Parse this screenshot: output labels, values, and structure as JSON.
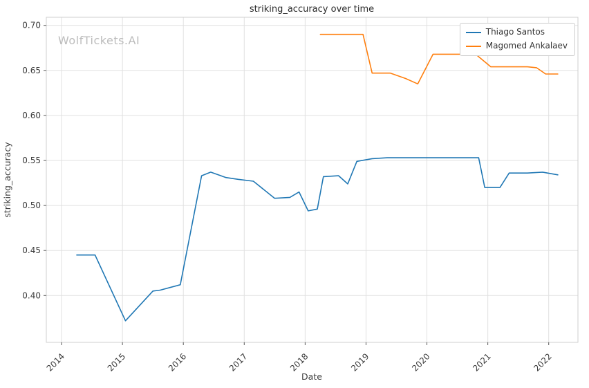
{
  "chart_data": {
    "type": "line",
    "title": "striking_accuracy over time",
    "xlabel": "Date",
    "ylabel": "striking_accuracy",
    "watermark": "WolfTickets.AI",
    "grid": true,
    "legend_position": "upper right",
    "xlim": [
      2013.75,
      2022.48
    ],
    "ylim": [
      0.348,
      0.709
    ],
    "xticks": [
      2014,
      2015,
      2016,
      2017,
      2018,
      2019,
      2020,
      2021,
      2022
    ],
    "yticks": [
      0.4,
      0.45,
      0.5,
      0.55,
      0.6,
      0.65,
      0.7
    ],
    "series": [
      {
        "name": "Thiago Santos",
        "color": "#1f77b4",
        "x": [
          2014.25,
          2014.55,
          2015.05,
          2015.5,
          2015.62,
          2015.95,
          2016.3,
          2016.45,
          2016.7,
          2016.9,
          2017.15,
          2017.5,
          2017.75,
          2017.9,
          2018.05,
          2018.2,
          2018.3,
          2018.55,
          2018.7,
          2018.85,
          2019.1,
          2019.35,
          2020.85,
          2020.95,
          2021.2,
          2021.35,
          2021.65,
          2021.9,
          2022.15
        ],
        "y": [
          0.445,
          0.445,
          0.372,
          0.405,
          0.406,
          0.412,
          0.533,
          0.537,
          0.531,
          0.529,
          0.527,
          0.508,
          0.509,
          0.515,
          0.494,
          0.496,
          0.532,
          0.533,
          0.524,
          0.549,
          0.552,
          0.553,
          0.553,
          0.52,
          0.52,
          0.536,
          0.536,
          0.537,
          0.534
        ]
      },
      {
        "name": "Magomed Ankalaev",
        "color": "#ff7f0e",
        "x": [
          2018.25,
          2018.6,
          2018.95,
          2019.1,
          2019.4,
          2019.65,
          2019.85,
          2020.1,
          2020.45,
          2020.8,
          2021.05,
          2021.35,
          2021.65,
          2021.8,
          2021.95,
          2022.15
        ],
        "y": [
          0.69,
          0.69,
          0.69,
          0.647,
          0.647,
          0.641,
          0.635,
          0.668,
          0.668,
          0.668,
          0.654,
          0.654,
          0.654,
          0.653,
          0.646,
          0.646
        ]
      }
    ]
  }
}
